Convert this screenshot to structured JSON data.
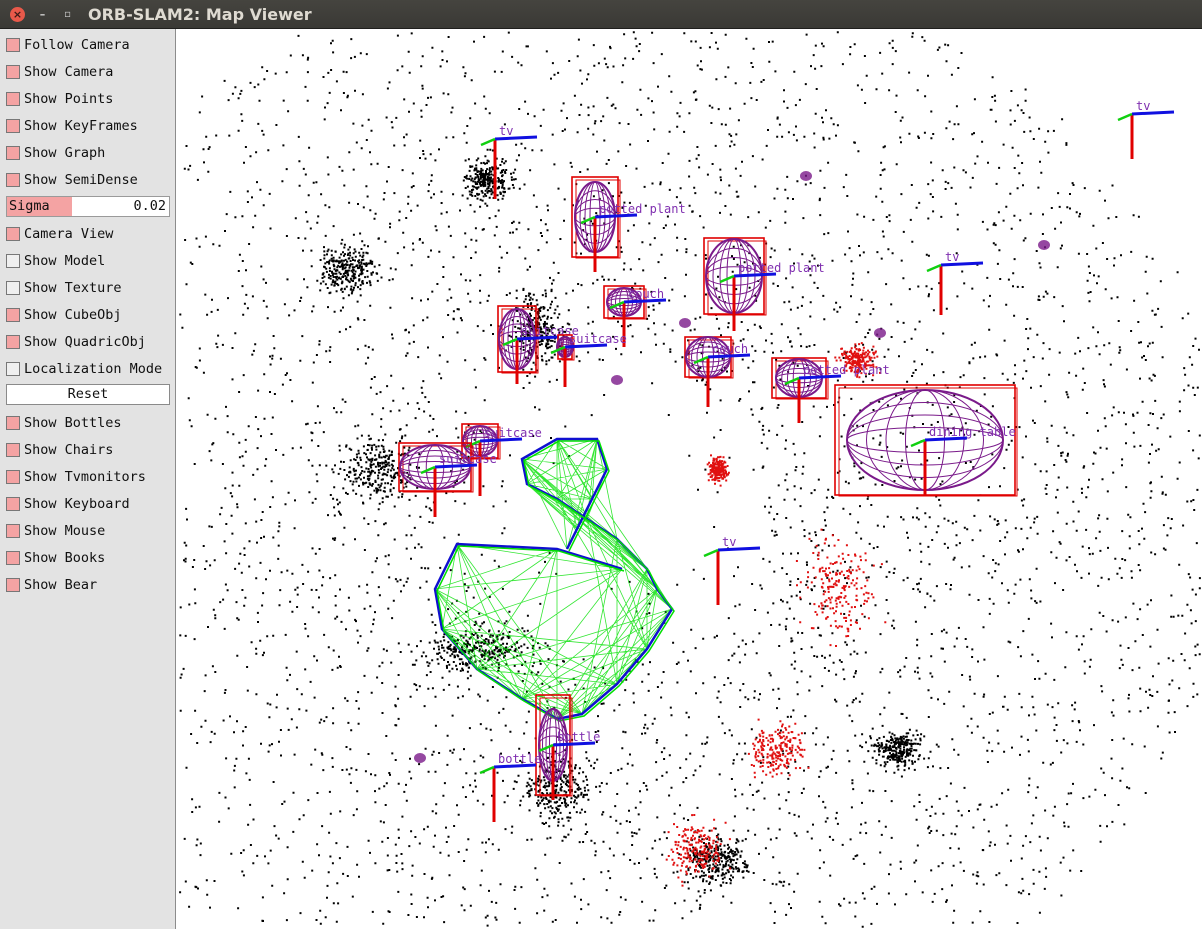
{
  "window": {
    "title": "ORB-SLAM2: Map Viewer"
  },
  "titlebar_buttons": {
    "close": "×",
    "minimize": "–",
    "maximize": "▫"
  },
  "panel": {
    "items_top": [
      {
        "label": "Follow Camera",
        "checked": true
      },
      {
        "label": "Show Camera",
        "checked": true
      },
      {
        "label": "Show Points",
        "checked": true
      },
      {
        "label": "Show KeyFrames",
        "checked": true
      },
      {
        "label": "Show Graph",
        "checked": true
      },
      {
        "label": "Show SemiDense",
        "checked": true
      }
    ],
    "sigma": {
      "label": "Sigma",
      "value": "0.02",
      "fraction": 0.4
    },
    "items_mid": [
      {
        "label": "Camera View",
        "checked": true
      },
      {
        "label": "Show Model",
        "checked": false
      },
      {
        "label": "Show Texture",
        "checked": false
      },
      {
        "label": "Show CubeObj",
        "checked": true
      },
      {
        "label": "Show QuadricObj",
        "checked": true
      },
      {
        "label": "Localization Mode",
        "checked": false
      }
    ],
    "reset_label": "Reset",
    "items_bottom": [
      {
        "label": "Show Bottles",
        "checked": true
      },
      {
        "label": "Show Chairs",
        "checked": true
      },
      {
        "label": "Show Tvmonitors",
        "checked": true
      },
      {
        "label": "Show Keyboard",
        "checked": true
      },
      {
        "label": "Show Mouse",
        "checked": true
      },
      {
        "label": "Show Books",
        "checked": true
      },
      {
        "label": "Show Bear",
        "checked": true
      }
    ]
  },
  "map": {
    "colors": {
      "map_point": "#000000",
      "ref_point": "#e01010",
      "box": "#e00000",
      "quadric": "#7a1a8a",
      "axis_x": "#1010e0",
      "axis_y": "#10d010",
      "axis_z": "#e00000",
      "label": "#8030b0",
      "graph": "#00e000",
      "keyframe": "#1010d0"
    },
    "object_labels": [
      "tv",
      "potted plant",
      "potted plant",
      "couch",
      "suitcase",
      "suitcase",
      "couch",
      "potted plant",
      "dining table",
      "suitcase",
      "suitcase",
      "tv",
      "tv",
      "tv",
      "bottle",
      "bottle"
    ]
  }
}
